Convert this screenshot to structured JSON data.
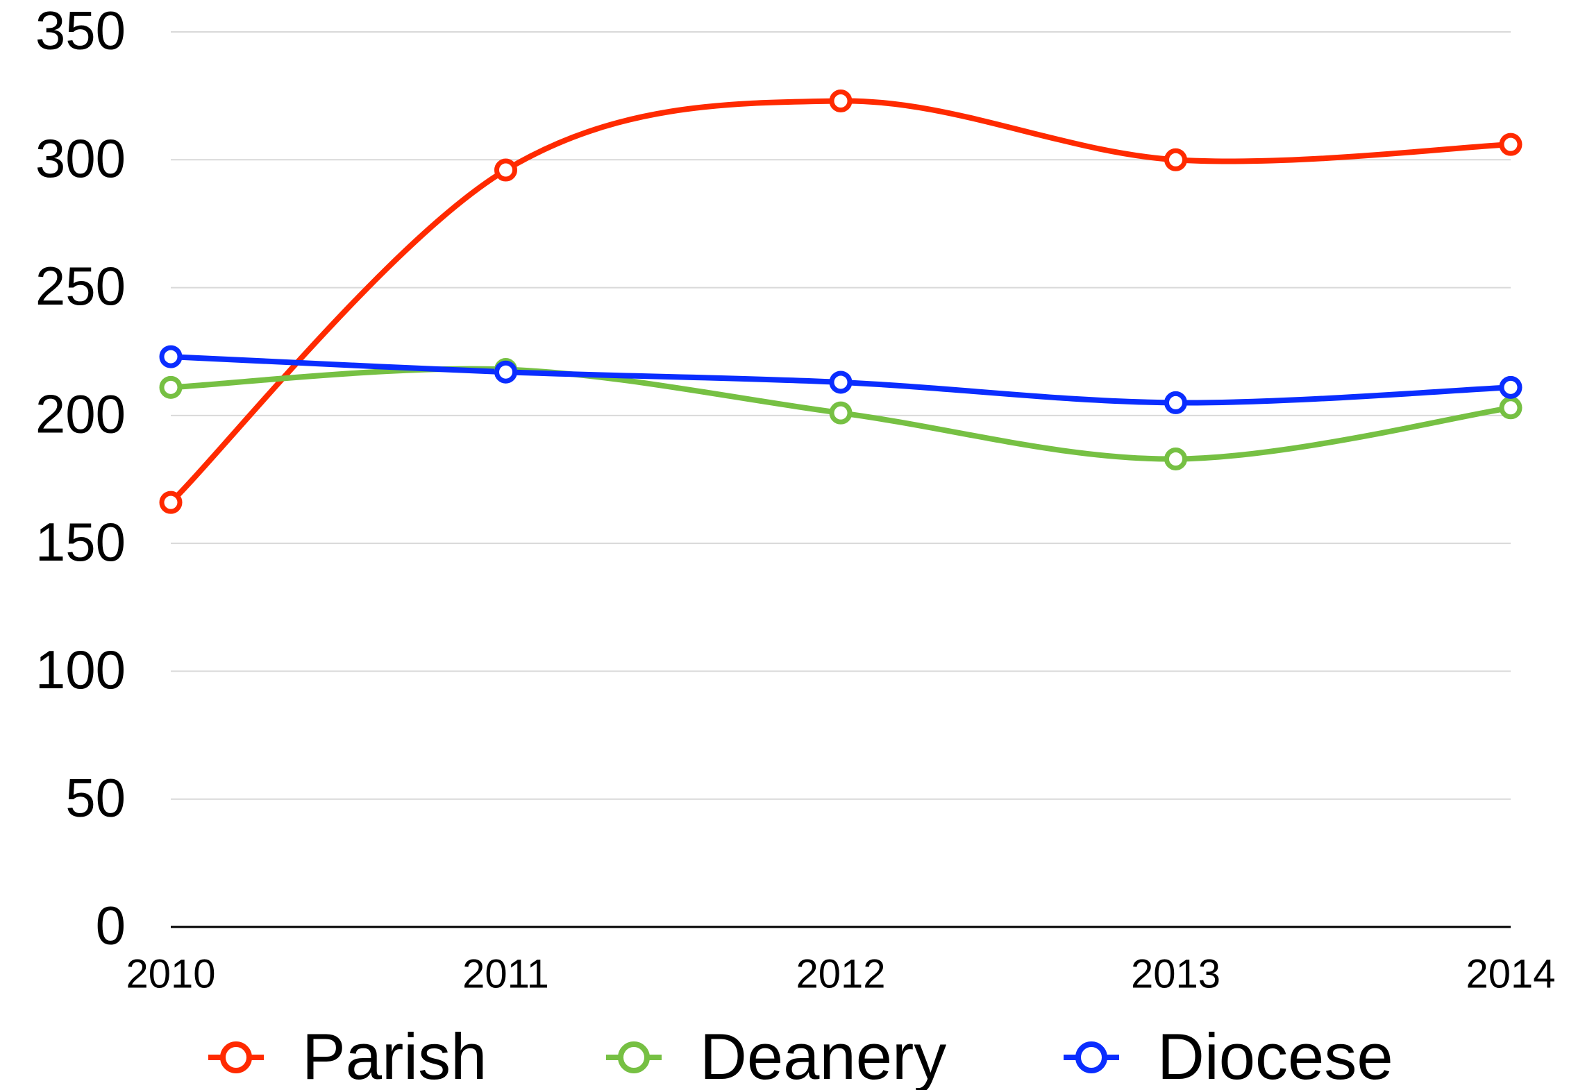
{
  "chart_data": {
    "type": "line",
    "categories": [
      "2010",
      "2011",
      "2012",
      "2013",
      "2014"
    ],
    "series": [
      {
        "name": "Parish",
        "color": "#ff2a00",
        "values": [
          166,
          296,
          323,
          300,
          306
        ]
      },
      {
        "name": "Deanery",
        "color": "#76c043",
        "values": [
          211,
          218,
          201,
          183,
          203
        ]
      },
      {
        "name": "Diocese",
        "color": "#0a2dff",
        "values": [
          223,
          217,
          213,
          205,
          211
        ]
      }
    ],
    "ylim": [
      0,
      350
    ],
    "yticks": [
      0,
      50,
      100,
      150,
      200,
      250,
      300,
      350
    ],
    "grid": true,
    "legend": "bottom",
    "smooth": true
  }
}
